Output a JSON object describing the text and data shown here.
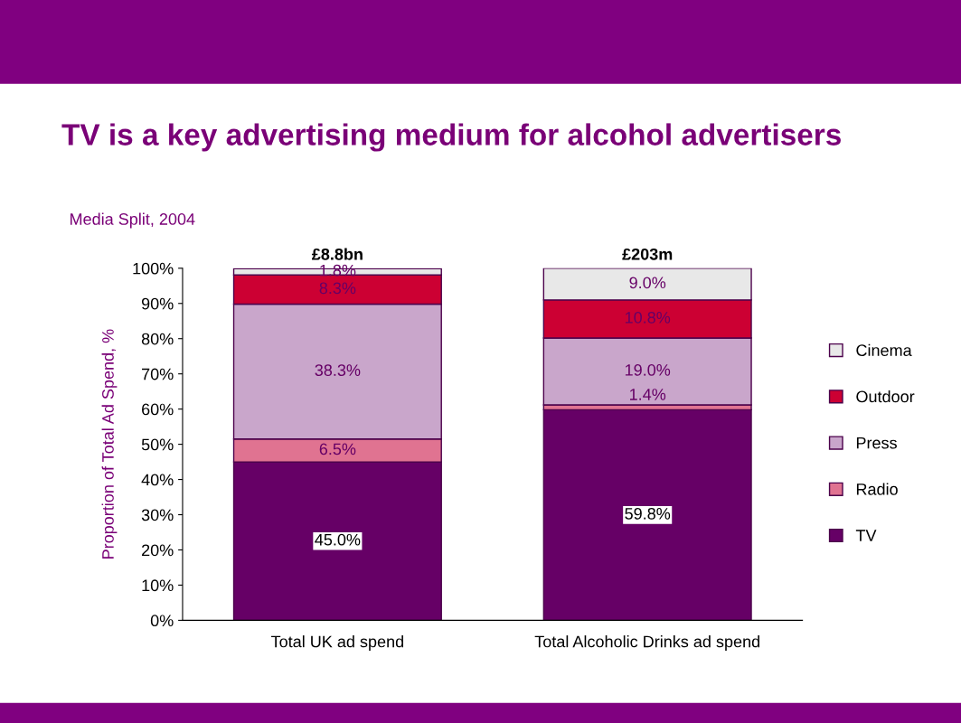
{
  "chart_data": {
    "type": "bar",
    "title": "TV is a key advertising medium for alcohol advertisers",
    "subtitle": "Media Split, 2004",
    "ylabel": "Proportion of Total Ad Spend, %",
    "categories": [
      "Total UK ad spend",
      "Total Alcoholic Drinks ad spend"
    ],
    "stacked": true,
    "annotations": [
      {
        "text": "£8.8bn",
        "x": "Total UK ad spend",
        "y": 100
      },
      {
        "text": "£203m",
        "x": "Total Alcoholic Drinks ad spend",
        "y": 100
      }
    ],
    "series": [
      {
        "name": "TV",
        "color": "#660066",
        "values": [
          45.0,
          59.8
        ],
        "value_labels": [
          "45.0%",
          "59.8%"
        ]
      },
      {
        "name": "Radio",
        "color": "#e07391",
        "values": [
          6.5,
          1.4
        ],
        "value_labels": [
          "6.5%",
          "1.4%"
        ]
      },
      {
        "name": "Press",
        "color": "#c9a6cb",
        "values": [
          38.3,
          19.0
        ],
        "value_labels": [
          "38.3%",
          "19.0%"
        ]
      },
      {
        "name": "Outdoor",
        "color": "#cc0033",
        "values": [
          8.3,
          10.8
        ],
        "value_labels": [
          "8.3%",
          "10.8%"
        ]
      },
      {
        "name": "Cinema",
        "color": "#e8e8e8",
        "values": [
          1.8,
          9.0
        ],
        "value_labels": [
          "1.8%",
          "9.0%"
        ]
      }
    ],
    "ylim": [
      0,
      100
    ],
    "yticks": [
      {
        "value": 0,
        "label": "0%"
      },
      {
        "value": 10,
        "label": "10%"
      },
      {
        "value": 20,
        "label": "20%"
      },
      {
        "value": 30,
        "label": "30%"
      },
      {
        "value": 40,
        "label": "40%"
      },
      {
        "value": 50,
        "label": "50%"
      },
      {
        "value": 60,
        "label": "60%"
      },
      {
        "value": 70,
        "label": "70%"
      },
      {
        "value": 80,
        "label": "80%"
      },
      {
        "value": 90,
        "label": "90%"
      },
      {
        "value": 100,
        "label": "100%"
      }
    ],
    "grid": false,
    "legend": "right"
  }
}
